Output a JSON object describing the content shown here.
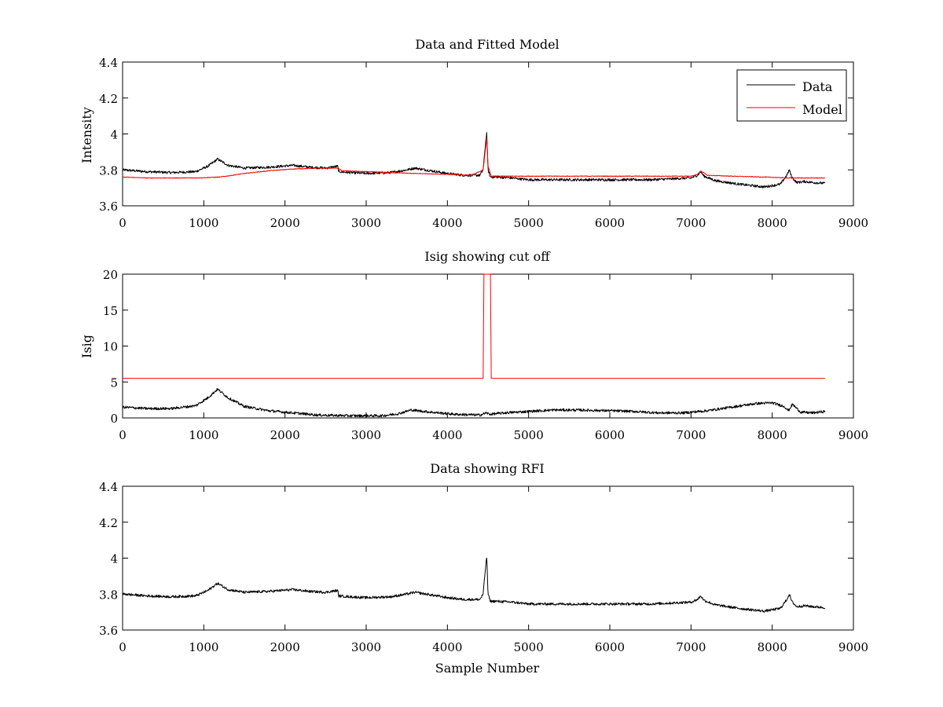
{
  "chart_data": [
    {
      "type": "line",
      "title": "Data and Fitted Model",
      "xlabel": "",
      "ylabel": "Intensity",
      "xlim": [
        0,
        9000
      ],
      "ylim": [
        3.6,
        4.4
      ],
      "xticks": [
        0,
        1000,
        2000,
        3000,
        4000,
        5000,
        6000,
        7000,
        8000,
        9000
      ],
      "yticks": [
        3.6,
        3.8,
        4,
        4.2,
        4.4
      ],
      "grid": false,
      "legend_position": "top-right",
      "series": [
        {
          "name": "Data",
          "color": "#000000",
          "noise": 0.007,
          "x": [
            0,
            300,
            600,
            900,
            1050,
            1170,
            1300,
            1500,
            1800,
            2100,
            2300,
            2500,
            2650,
            2660,
            2800,
            3000,
            3300,
            3500,
            3600,
            3800,
            4000,
            4200,
            4400,
            4440,
            4470,
            4485,
            4500,
            4530,
            4600,
            4800,
            5000,
            5300,
            5600,
            6000,
            6500,
            7000,
            7080,
            7120,
            7160,
            7300,
            7600,
            7900,
            8100,
            8180,
            8210,
            8240,
            8300,
            8400,
            8500,
            8650
          ],
          "y": [
            3.8,
            3.79,
            3.785,
            3.79,
            3.82,
            3.86,
            3.825,
            3.81,
            3.815,
            3.825,
            3.815,
            3.81,
            3.82,
            3.79,
            3.785,
            3.78,
            3.785,
            3.8,
            3.81,
            3.795,
            3.78,
            3.77,
            3.77,
            3.8,
            3.95,
            4.01,
            3.8,
            3.76,
            3.76,
            3.755,
            3.745,
            3.745,
            3.745,
            3.745,
            3.745,
            3.755,
            3.77,
            3.79,
            3.765,
            3.74,
            3.72,
            3.705,
            3.72,
            3.77,
            3.8,
            3.76,
            3.73,
            3.735,
            3.73,
            3.725
          ]
        },
        {
          "name": "Model",
          "color": "#ff0000",
          "noise": 0.002,
          "x": [
            0,
            300,
            600,
            900,
            1200,
            1500,
            1800,
            2100,
            2400,
            2600,
            2650,
            2700,
            3000,
            3300,
            3600,
            4000,
            4300,
            4440,
            4470,
            4485,
            4500,
            4540,
            4700,
            5000,
            5500,
            6000,
            6500,
            7000,
            7080,
            7120,
            7200,
            7500,
            7900,
            8200,
            8650
          ],
          "y": [
            3.76,
            3.755,
            3.755,
            3.755,
            3.76,
            3.78,
            3.795,
            3.805,
            3.81,
            3.81,
            3.81,
            3.795,
            3.79,
            3.785,
            3.78,
            3.775,
            3.77,
            3.8,
            3.92,
            3.98,
            3.82,
            3.765,
            3.765,
            3.765,
            3.765,
            3.765,
            3.765,
            3.765,
            3.775,
            3.795,
            3.77,
            3.765,
            3.76,
            3.755,
            3.755
          ]
        }
      ]
    },
    {
      "type": "line",
      "title": "Isig showing cut off",
      "xlabel": "",
      "ylabel": "Isig",
      "xlim": [
        0,
        9000
      ],
      "ylim": [
        0,
        20
      ],
      "xticks": [
        0,
        1000,
        2000,
        3000,
        4000,
        5000,
        6000,
        7000,
        8000,
        9000
      ],
      "yticks": [
        0,
        5,
        10,
        15,
        20
      ],
      "grid": false,
      "series": [
        {
          "color": "#000000",
          "noise": 0.18,
          "x": [
            0,
            300,
            600,
            900,
            1050,
            1170,
            1300,
            1500,
            1800,
            2100,
            2400,
            2800,
            3200,
            3400,
            3550,
            3800,
            4100,
            4400,
            4480,
            4520,
            4700,
            5000,
            5300,
            5600,
            6000,
            6300,
            6600,
            6900,
            7200,
            7500,
            7800,
            8000,
            8150,
            8200,
            8250,
            8350,
            8500,
            8650
          ],
          "y": [
            1.5,
            1.3,
            1.3,
            1.7,
            2.8,
            4,
            2.8,
            1.6,
            1,
            0.7,
            0.4,
            0.3,
            0.3,
            0.6,
            1.1,
            0.8,
            0.5,
            0.4,
            0.7,
            0.5,
            0.7,
            0.9,
            1.1,
            1.1,
            1,
            0.9,
            0.7,
            0.7,
            1,
            1.5,
            2,
            2.1,
            1.6,
            1,
            1.9,
            0.8,
            0.7,
            0.9
          ]
        },
        {
          "color": "#ff0000",
          "noise": 0,
          "x": [
            0,
            4440,
            4450,
            4530,
            4540,
            8650
          ],
          "y": [
            5.5,
            5.5,
            20,
            20,
            5.5,
            5.5
          ]
        }
      ]
    },
    {
      "type": "line",
      "title": "Data showing RFI",
      "xlabel": "Sample Number",
      "ylabel": "",
      "xlim": [
        0,
        9000
      ],
      "ylim": [
        3.6,
        4.4
      ],
      "xticks": [
        0,
        1000,
        2000,
        3000,
        4000,
        5000,
        6000,
        7000,
        8000,
        9000
      ],
      "yticks": [
        3.6,
        3.8,
        4,
        4.2,
        4.4
      ],
      "grid": false,
      "series": [
        {
          "color": "#000000",
          "noise": 0.007,
          "x": [
            0,
            300,
            600,
            900,
            1050,
            1170,
            1300,
            1500,
            1800,
            2100,
            2300,
            2500,
            2650,
            2660,
            2800,
            3000,
            3300,
            3500,
            3600,
            3800,
            4000,
            4200,
            4400,
            4440,
            4470,
            4485,
            4500,
            4530,
            4600,
            4800,
            5000,
            5300,
            5600,
            6000,
            6500,
            7000,
            7080,
            7120,
            7160,
            7300,
            7600,
            7900,
            8100,
            8180,
            8210,
            8240,
            8300,
            8400,
            8500,
            8650
          ],
          "y": [
            3.8,
            3.79,
            3.785,
            3.79,
            3.82,
            3.86,
            3.825,
            3.81,
            3.815,
            3.825,
            3.815,
            3.81,
            3.82,
            3.79,
            3.785,
            3.78,
            3.785,
            3.8,
            3.81,
            3.795,
            3.78,
            3.77,
            3.77,
            3.8,
            3.95,
            4.01,
            3.8,
            3.76,
            3.76,
            3.755,
            3.745,
            3.745,
            3.745,
            3.745,
            3.745,
            3.755,
            3.77,
            3.79,
            3.765,
            3.74,
            3.72,
            3.705,
            3.72,
            3.77,
            3.8,
            3.76,
            3.73,
            3.735,
            3.73,
            3.725
          ]
        }
      ]
    }
  ]
}
